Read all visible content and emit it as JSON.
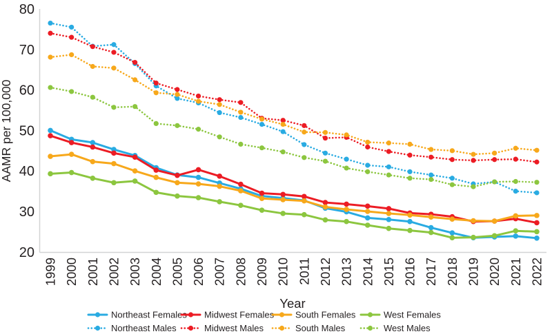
{
  "figure": {
    "background": "#FFFFFF",
    "axis_color": "#D1D3D4",
    "text_color": "#231F20"
  },
  "chart_data": {
    "type": "line",
    "title": "",
    "xlabel": "Year",
    "ylabel": "AAMR per 100,000",
    "ylim": [
      20,
      80
    ],
    "yticks": [
      80,
      70,
      60,
      50,
      40,
      30,
      20
    ],
    "grid": false,
    "legend_position": "bottom",
    "x": [
      1999,
      2000,
      2001,
      2002,
      2003,
      2004,
      2005,
      2006,
      2007,
      2008,
      2009,
      2010,
      2011,
      2012,
      2013,
      2014,
      2015,
      2016,
      2017,
      2018,
      2019,
      2020,
      2021,
      2022
    ],
    "series": [
      {
        "name": "Northeast Females",
        "color": "#29ABE2",
        "style": "solid",
        "values": [
          50.0,
          47.8,
          47.0,
          45.3,
          43.8,
          40.8,
          39.0,
          38.4,
          37.0,
          35.6,
          33.8,
          33.3,
          32.7,
          30.8,
          29.9,
          28.4,
          28.0,
          27.5,
          26.0,
          24.7,
          23.5,
          23.7,
          23.9,
          23.4
        ]
      },
      {
        "name": "Midwest Females",
        "color": "#EC1C24",
        "style": "solid",
        "values": [
          48.7,
          47.0,
          45.9,
          44.4,
          43.4,
          40.2,
          38.9,
          40.3,
          38.7,
          36.7,
          34.5,
          34.2,
          33.7,
          32.2,
          31.8,
          31.3,
          30.7,
          29.6,
          29.3,
          28.7,
          27.5,
          27.6,
          28.2,
          27.2
        ]
      },
      {
        "name": "South Females",
        "color": "#F7A81B",
        "style": "solid",
        "values": [
          43.6,
          44.1,
          42.3,
          41.8,
          40.0,
          38.4,
          37.1,
          36.8,
          36.2,
          35.1,
          33.2,
          32.9,
          32.6,
          31.1,
          30.5,
          30.0,
          29.5,
          29.1,
          28.6,
          28.1,
          27.7,
          27.6,
          28.9,
          29.0
        ]
      },
      {
        "name": "West Females",
        "color": "#8CC63F",
        "style": "solid",
        "values": [
          39.3,
          39.6,
          38.2,
          37.1,
          37.5,
          34.7,
          33.8,
          33.4,
          32.4,
          31.5,
          30.3,
          29.5,
          29.2,
          27.9,
          27.5,
          26.6,
          25.8,
          25.3,
          24.8,
          23.5,
          23.6,
          24.0,
          25.2,
          25.0
        ]
      },
      {
        "name": "Northeast Males",
        "color": "#29ABE2",
        "style": "dotted",
        "values": [
          76.5,
          75.5,
          70.8,
          71.2,
          66.5,
          61.0,
          57.9,
          56.8,
          54.4,
          53.2,
          51.5,
          49.7,
          46.5,
          44.4,
          42.9,
          41.4,
          41.0,
          39.8,
          39.0,
          38.2,
          36.8,
          37.3,
          35.0,
          34.6
        ]
      },
      {
        "name": "Midwest Males",
        "color": "#EC1C24",
        "style": "dotted",
        "values": [
          74.0,
          73.0,
          70.7,
          69.3,
          66.8,
          61.7,
          60.1,
          58.5,
          57.6,
          56.9,
          53.0,
          52.5,
          51.2,
          48.1,
          48.3,
          45.9,
          44.8,
          43.9,
          43.4,
          42.8,
          42.6,
          42.8,
          42.9,
          42.2
        ]
      },
      {
        "name": "South Males",
        "color": "#F7A81B",
        "style": "dotted",
        "values": [
          68.1,
          68.7,
          65.8,
          65.4,
          62.5,
          59.3,
          58.9,
          57.2,
          56.4,
          54.5,
          52.8,
          51.5,
          49.6,
          49.5,
          48.9,
          47.1,
          46.9,
          46.6,
          45.3,
          45.0,
          44.1,
          44.4,
          45.6,
          45.1
        ]
      },
      {
        "name": "West Males",
        "color": "#8CC63F",
        "style": "dotted",
        "values": [
          60.6,
          59.6,
          58.2,
          55.7,
          55.9,
          51.7,
          51.2,
          50.3,
          48.4,
          46.6,
          45.7,
          44.7,
          43.3,
          42.4,
          40.7,
          39.8,
          39.0,
          38.2,
          37.9,
          36.6,
          36.1,
          37.3,
          37.4,
          37.2
        ]
      }
    ]
  }
}
